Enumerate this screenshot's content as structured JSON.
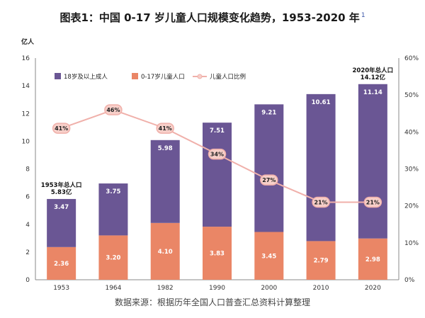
{
  "title": {
    "text": "图表1：中国 0-17 岁儿童人口规模变化趋势，1953-2020 年",
    "footnote": "1"
  },
  "source": "数据来源：根据历年全国人口普查汇总资料计算整理",
  "colors": {
    "adult": "#6a5694",
    "child": "#ea8666",
    "ratio": "#f0b0aa",
    "pct_bubble": "#f7cfc9"
  },
  "chart_data": {
    "type": "bar",
    "stacked": true,
    "categories": [
      "1953",
      "1964",
      "1982",
      "1990",
      "2000",
      "2010",
      "2020"
    ],
    "series": [
      {
        "name": "18岁及以上成人",
        "values": [
          3.47,
          3.75,
          5.98,
          7.51,
          9.21,
          10.61,
          11.14
        ]
      },
      {
        "name": "0-17岁儿童人口",
        "values": [
          2.36,
          3.2,
          4.1,
          3.83,
          3.45,
          2.79,
          2.98
        ]
      }
    ],
    "line_series": {
      "name": "儿童人口比例",
      "axis": "right",
      "values": [
        41,
        46,
        41,
        34,
        27,
        21,
        21
      ],
      "labels": [
        "41%",
        "46%",
        "41%",
        "34%",
        "27%",
        "21%",
        "21%"
      ]
    },
    "ylabel": "亿人",
    "ylim": [
      0,
      16
    ],
    "yticks": [
      0,
      2,
      4,
      6,
      8,
      10,
      12,
      14,
      16
    ],
    "y2lim": [
      0,
      60
    ],
    "y2ticks": [
      "0%",
      "10%",
      "20%",
      "30%",
      "40%",
      "50%",
      "60%"
    ],
    "legend_position": "top-left",
    "grid": false,
    "annotations": [
      {
        "category": "1953",
        "lines": [
          "1953年总人口",
          "5.83亿"
        ]
      },
      {
        "category": "2020",
        "lines": [
          "2020年总人口",
          "14.12亿"
        ]
      }
    ]
  }
}
